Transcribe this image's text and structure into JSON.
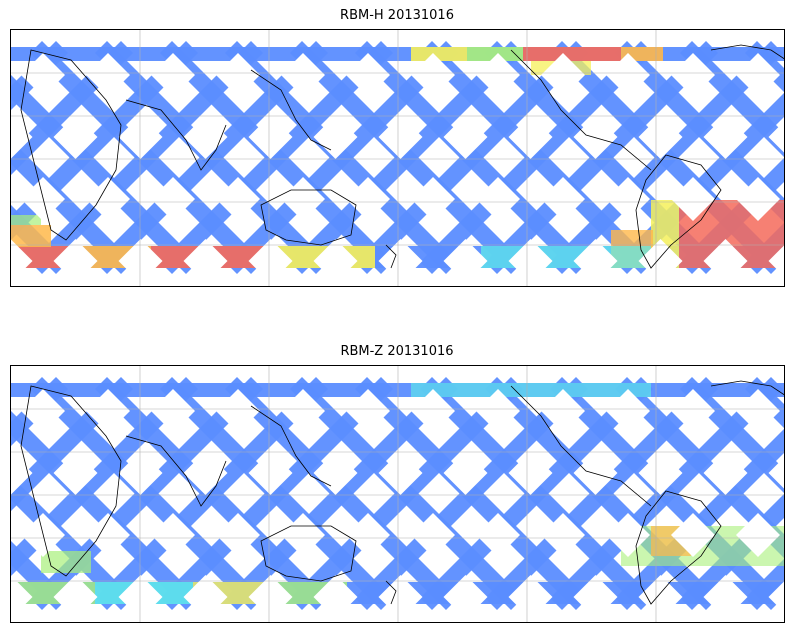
{
  "figure": {
    "panels": [
      {
        "id": "rbm-h",
        "title": "RBM-H 20131016",
        "hot_zones": [
          "southern-ocean-band",
          "north-pacific-strip",
          "south-atlantic-band"
        ]
      },
      {
        "id": "rbm-z",
        "title": "RBM-Z 20131016",
        "hot_zones": [
          "south-indian-ocean-band",
          "south-atlantic-band-mild"
        ]
      }
    ],
    "colormap": [
      "#6a5ef0",
      "#5b8dff",
      "#59b8ff",
      "#5ef0e8",
      "#a8f07a",
      "#f5f05a",
      "#ffb84a",
      "#f56a5a"
    ],
    "coastline_color": "#000000",
    "gridline_color": "#b0b0b0"
  }
}
